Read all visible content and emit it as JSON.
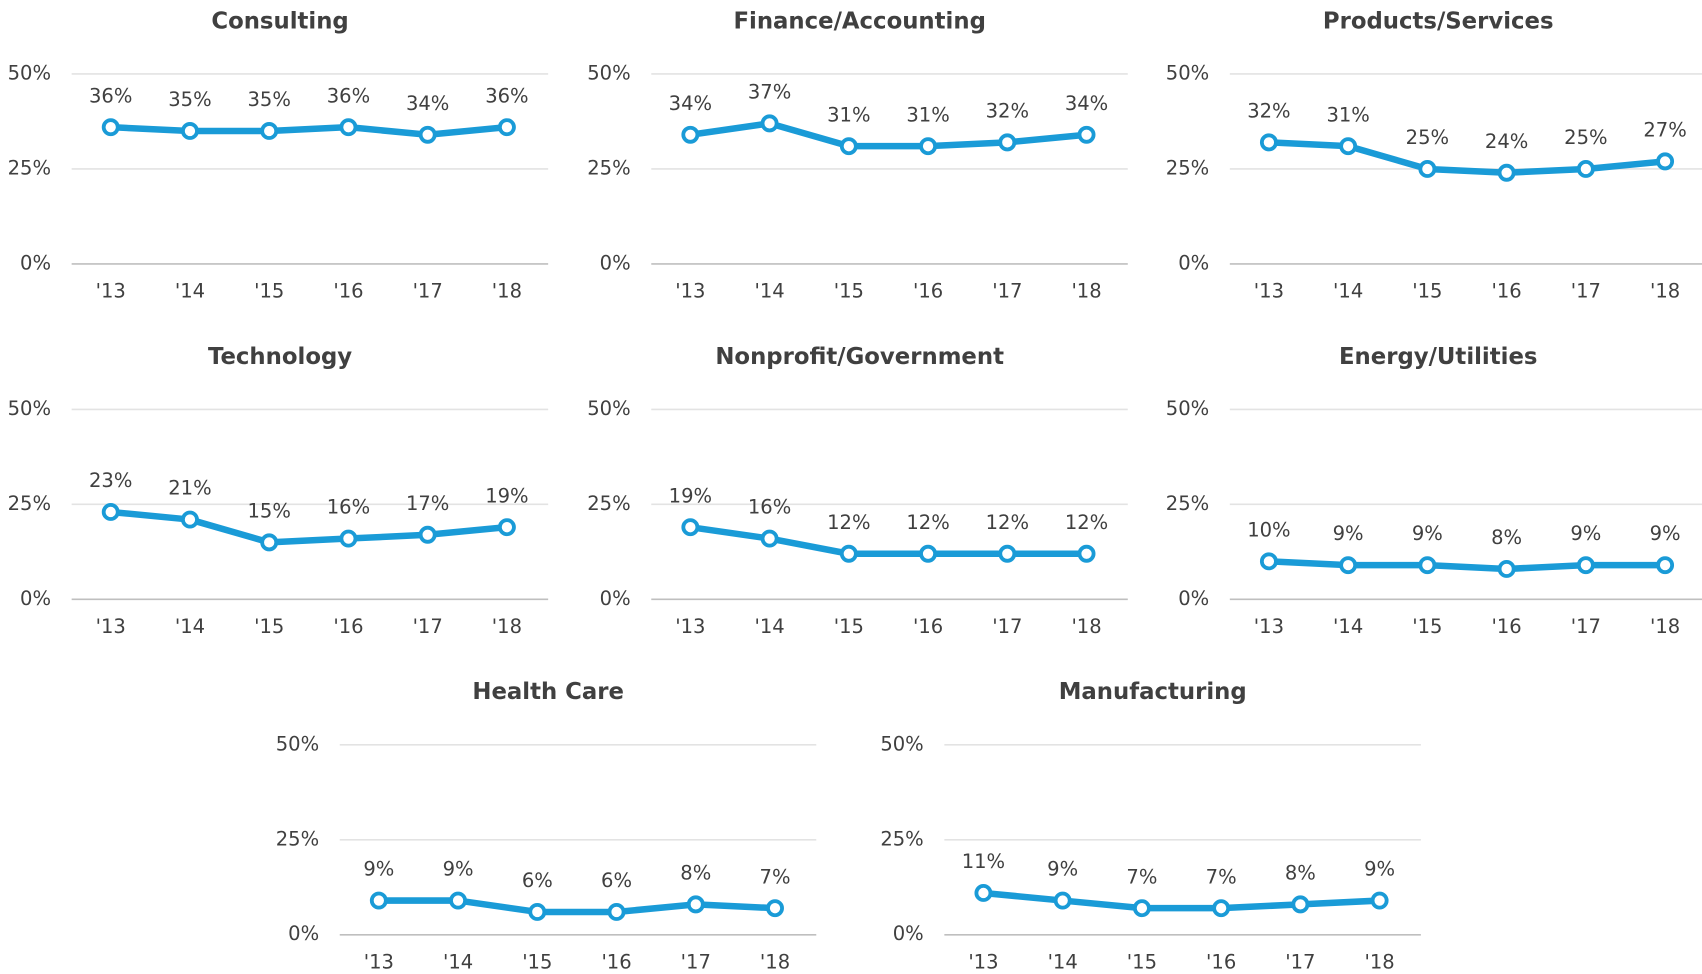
{
  "chart_data": [
    {
      "type": "line",
      "title": "Consulting",
      "categories": [
        "'13",
        "'14",
        "'15",
        "'16",
        "'17",
        "'18"
      ],
      "values": [
        36,
        35,
        35,
        36,
        34,
        36
      ],
      "value_labels": [
        "36%",
        "35%",
        "35%",
        "36%",
        "34%",
        "36%"
      ],
      "color": "#1a9bd7",
      "ylim": [
        0,
        50
      ],
      "yticks": [
        {
          "value": 0,
          "label": "0%"
        },
        {
          "value": 25,
          "label": "25%"
        },
        {
          "value": 50,
          "label": "50%"
        }
      ],
      "grid": true
    },
    {
      "type": "line",
      "title": "Finance/Accounting",
      "categories": [
        "'13",
        "'14",
        "'15",
        "'16",
        "'17",
        "'18"
      ],
      "values": [
        34,
        37,
        31,
        31,
        32,
        34
      ],
      "value_labels": [
        "34%",
        "37%",
        "31%",
        "31%",
        "32%",
        "34%"
      ],
      "color": "#1a9bd7",
      "ylim": [
        0,
        50
      ],
      "yticks": [
        {
          "value": 0,
          "label": "0%"
        },
        {
          "value": 25,
          "label": "25%"
        },
        {
          "value": 50,
          "label": "50%"
        }
      ],
      "grid": true
    },
    {
      "type": "line",
      "title": "Products/Services",
      "categories": [
        "'13",
        "'14",
        "'15",
        "'16",
        "'17",
        "'18"
      ],
      "values": [
        32,
        31,
        25,
        24,
        25,
        27
      ],
      "value_labels": [
        "32%",
        "31%",
        "25%",
        "24%",
        "25%",
        "27%"
      ],
      "color": "#1a9bd7",
      "ylim": [
        0,
        50
      ],
      "yticks": [
        {
          "value": 0,
          "label": "0%"
        },
        {
          "value": 25,
          "label": "25%"
        },
        {
          "value": 50,
          "label": "50%"
        }
      ],
      "grid": true
    },
    {
      "type": "line",
      "title": "Technology",
      "categories": [
        "'13",
        "'14",
        "'15",
        "'16",
        "'17",
        "'18"
      ],
      "values": [
        23,
        21,
        15,
        16,
        17,
        19
      ],
      "value_labels": [
        "23%",
        "21%",
        "15%",
        "16%",
        "17%",
        "19%"
      ],
      "color": "#1a9bd7",
      "ylim": [
        0,
        50
      ],
      "yticks": [
        {
          "value": 0,
          "label": "0%"
        },
        {
          "value": 25,
          "label": "25%"
        },
        {
          "value": 50,
          "label": "50%"
        }
      ],
      "grid": true
    },
    {
      "type": "line",
      "title": "Nonprofit/Government",
      "categories": [
        "'13",
        "'14",
        "'15",
        "'16",
        "'17",
        "'18"
      ],
      "values": [
        19,
        16,
        12,
        12,
        12,
        12
      ],
      "value_labels": [
        "19%",
        "16%",
        "12%",
        "12%",
        "12%",
        "12%"
      ],
      "color": "#1a9bd7",
      "ylim": [
        0,
        50
      ],
      "yticks": [
        {
          "value": 0,
          "label": "0%"
        },
        {
          "value": 25,
          "label": "25%"
        },
        {
          "value": 50,
          "label": "50%"
        }
      ],
      "grid": true
    },
    {
      "type": "line",
      "title": "Energy/Utilities",
      "categories": [
        "'13",
        "'14",
        "'15",
        "'16",
        "'17",
        "'18"
      ],
      "values": [
        10,
        9,
        9,
        8,
        9,
        9
      ],
      "value_labels": [
        "10%",
        "9%",
        "9%",
        "8%",
        "9%",
        "9%"
      ],
      "color": "#1a9bd7",
      "ylim": [
        0,
        50
      ],
      "yticks": [
        {
          "value": 0,
          "label": "0%"
        },
        {
          "value": 25,
          "label": "25%"
        },
        {
          "value": 50,
          "label": "50%"
        }
      ],
      "grid": true
    },
    {
      "type": "line",
      "title": "Health Care",
      "categories": [
        "'13",
        "'14",
        "'15",
        "'16",
        "'17",
        "'18"
      ],
      "values": [
        9,
        9,
        6,
        6,
        8,
        7
      ],
      "value_labels": [
        "9%",
        "9%",
        "6%",
        "6%",
        "8%",
        "7%"
      ],
      "color": "#1a9bd7",
      "ylim": [
        0,
        50
      ],
      "yticks": [
        {
          "value": 0,
          "label": "0%"
        },
        {
          "value": 25,
          "label": "25%"
        },
        {
          "value": 50,
          "label": "50%"
        }
      ],
      "grid": true
    },
    {
      "type": "line",
      "title": "Manufacturing",
      "categories": [
        "'13",
        "'14",
        "'15",
        "'16",
        "'17",
        "'18"
      ],
      "values": [
        11,
        9,
        7,
        7,
        8,
        9
      ],
      "value_labels": [
        "11%",
        "9%",
        "7%",
        "7%",
        "8%",
        "9%"
      ],
      "color": "#1a9bd7",
      "ylim": [
        0,
        50
      ],
      "yticks": [
        {
          "value": 0,
          "label": "0%"
        },
        {
          "value": 25,
          "label": "25%"
        },
        {
          "value": 50,
          "label": "50%"
        }
      ],
      "grid": true
    }
  ]
}
